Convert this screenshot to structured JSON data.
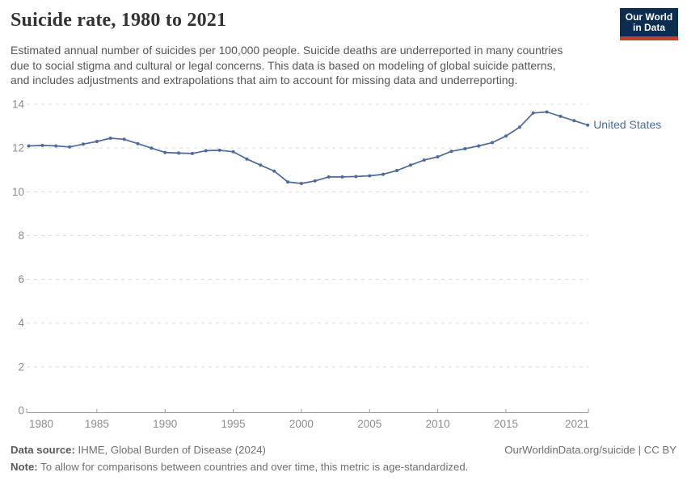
{
  "header": {
    "title": "Suicide rate, 1980 to 2021",
    "logo": {
      "line1": "Our World",
      "line2": "in Data"
    }
  },
  "subtitle": {
    "lines": [
      "Estimated annual number of suicides per 100,000 people. Suicide deaths are underreported in many countries",
      "due to social stigma and cultural or legal concerns. This data is based on modeling of global suicide patterns,",
      "and includes adjustments and extrapolations that aim to account for missing data and underreporting."
    ]
  },
  "chart_data": {
    "type": "line",
    "title": "Suicide rate, 1980 to 2021",
    "xlabel": "",
    "ylabel": "",
    "ylim": [
      0,
      14
    ],
    "grid": "horizontal-dashed",
    "legend_position": "end-of-line-label",
    "x": [
      1980,
      1981,
      1982,
      1983,
      1984,
      1985,
      1986,
      1987,
      1988,
      1989,
      1990,
      1991,
      1992,
      1993,
      1994,
      1995,
      1996,
      1997,
      1998,
      1999,
      2000,
      2001,
      2002,
      2003,
      2004,
      2005,
      2006,
      2007,
      2008,
      2009,
      2010,
      2011,
      2012,
      2013,
      2014,
      2015,
      2016,
      2017,
      2018,
      2019,
      2020,
      2021
    ],
    "series": [
      {
        "name": "United States",
        "values": [
          12.1,
          12.12,
          12.1,
          12.05,
          12.18,
          12.3,
          12.45,
          12.4,
          12.2,
          12.0,
          11.8,
          11.77,
          11.75,
          11.88,
          11.9,
          11.83,
          11.5,
          11.22,
          10.95,
          10.45,
          10.38,
          10.5,
          10.68,
          10.68,
          10.7,
          10.73,
          10.8,
          10.97,
          11.22,
          11.45,
          11.6,
          11.85,
          11.97,
          12.1,
          12.25,
          12.55,
          12.95,
          13.6,
          13.65,
          13.45,
          13.25,
          13.05
        ]
      }
    ],
    "yticks": [
      0,
      2,
      4,
      6,
      8,
      10,
      12,
      14
    ],
    "ytick_labels": [
      "0",
      "2",
      "4",
      "6",
      "8",
      "10",
      "12",
      "14"
    ],
    "xticks": [
      1980,
      1985,
      1990,
      1995,
      2000,
      2005,
      2010,
      2015,
      2021
    ],
    "xtick_labels": [
      "1980",
      "1985",
      "1990",
      "1995",
      "2000",
      "2005",
      "2010",
      "2015",
      "2021"
    ],
    "colors": {
      "line": "#4C6A9C",
      "grid": "#dcdcdc",
      "axis": "#9b9b9b",
      "tick_text": "#8c8c8c"
    }
  },
  "footer": {
    "source_label": "Data source:",
    "source_text": " IHME, Global Burden of Disease (2024)",
    "rights": "OurWorldinData.org/suicide | CC BY",
    "note_label": "Note:",
    "note_text": " To allow for comparisons between countries and over time, this metric is age-standardized."
  }
}
